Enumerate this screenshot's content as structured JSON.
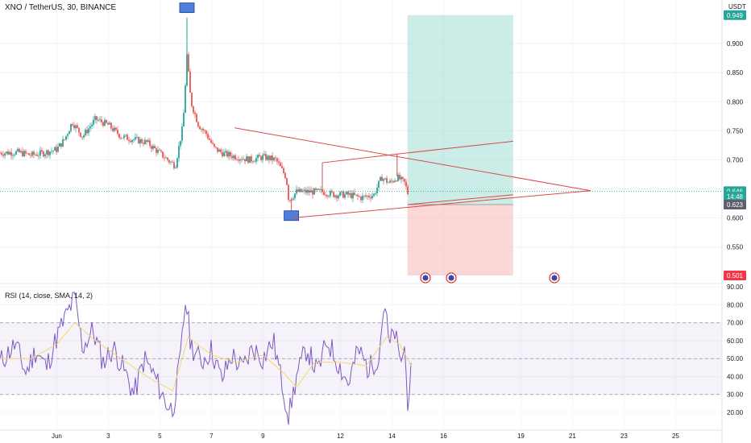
{
  "header": {
    "symbol": "XNO / TetherUS, 30, BINANCE",
    "unit": "USDT"
  },
  "rsi": {
    "label": "RSI (14, close, SMA, 14, 2)"
  },
  "colors": {
    "candle_up": "#26a69a",
    "candle_down": "#ef5350",
    "pattern_line": "#d94a4a",
    "profit_zone": "#8fd6c9",
    "loss_zone": "#f7b7b7",
    "rsi_line": "#7e57c2",
    "rsi_ma": "#f5d76e",
    "marker_box": "#4f7fdc",
    "price_tag_green": "#26a69a",
    "price_tag_red": "#f23645"
  },
  "chart_data": {
    "type": "candlestick",
    "price_axis": {
      "ticks": [
        "0.900",
        "0.850",
        "0.800",
        "0.750",
        "0.700",
        "0.650",
        "0.600",
        "0.550"
      ],
      "tick_values": [
        0.9,
        0.85,
        0.8,
        0.75,
        0.7,
        0.65,
        0.6,
        0.55
      ],
      "range": [
        0.49,
        0.975
      ]
    },
    "price_tags": [
      {
        "label": "0.949",
        "value": 0.949,
        "kind": "green"
      },
      {
        "label": "0.646",
        "value": 0.646,
        "kind": "green"
      },
      {
        "label": "14:48",
        "value": 0.637,
        "kind": "green"
      },
      {
        "label": "0.623",
        "value": 0.623,
        "kind": "gray"
      },
      {
        "label": "0.501",
        "value": 0.501,
        "kind": "red"
      }
    ],
    "time_axis": {
      "labels": [
        "Jun",
        "3",
        "5",
        "7",
        "9",
        "12",
        "14",
        "16",
        "19",
        "21",
        "23",
        "25"
      ],
      "days": [
        1,
        3,
        5,
        7,
        9,
        12,
        14,
        16,
        19,
        21,
        23,
        25
      ],
      "range_days": [
        -1.2,
        26.8
      ]
    },
    "rsi_axis": {
      "ticks": [
        "90.00",
        "80.00",
        "70.00",
        "60.00",
        "50.00",
        "40.00",
        "30.00",
        "20.00"
      ],
      "tick_values": [
        90,
        80,
        70,
        60,
        50,
        40,
        30,
        20
      ],
      "range": [
        11,
        91
      ],
      "band": [
        30,
        70
      ],
      "mid": 50
    },
    "close_series": [
      {
        "day": -1.2,
        "v": 0.712
      },
      {
        "day": -0.5,
        "v": 0.713
      },
      {
        "day": 0.0,
        "v": 0.708
      },
      {
        "day": 0.5,
        "v": 0.712
      },
      {
        "day": 1.0,
        "v": 0.718
      },
      {
        "day": 1.3,
        "v": 0.735
      },
      {
        "day": 1.6,
        "v": 0.765
      },
      {
        "day": 2.0,
        "v": 0.74
      },
      {
        "day": 2.5,
        "v": 0.77
      },
      {
        "day": 3.0,
        "v": 0.76
      },
      {
        "day": 3.5,
        "v": 0.74
      },
      {
        "day": 4.0,
        "v": 0.735
      },
      {
        "day": 4.5,
        "v": 0.73
      },
      {
        "day": 4.9,
        "v": 0.715
      },
      {
        "day": 5.3,
        "v": 0.7
      },
      {
        "day": 5.6,
        "v": 0.69
      },
      {
        "day": 5.9,
        "v": 0.76
      },
      {
        "day": 6.05,
        "v": 0.88
      },
      {
        "day": 6.2,
        "v": 0.8
      },
      {
        "day": 6.5,
        "v": 0.76
      },
      {
        "day": 6.8,
        "v": 0.745
      },
      {
        "day": 7.1,
        "v": 0.72
      },
      {
        "day": 7.5,
        "v": 0.71
      },
      {
        "day": 8.0,
        "v": 0.705
      },
      {
        "day": 8.5,
        "v": 0.7
      },
      {
        "day": 9.0,
        "v": 0.705
      },
      {
        "day": 9.5,
        "v": 0.7
      },
      {
        "day": 9.9,
        "v": 0.67
      },
      {
        "day": 10.0,
        "v": 0.63
      },
      {
        "day": 10.3,
        "v": 0.645
      },
      {
        "day": 10.8,
        "v": 0.645
      },
      {
        "day": 11.3,
        "v": 0.645
      },
      {
        "day": 11.8,
        "v": 0.64
      },
      {
        "day": 12.3,
        "v": 0.64
      },
      {
        "day": 12.8,
        "v": 0.635
      },
      {
        "day": 13.3,
        "v": 0.64
      },
      {
        "day": 13.6,
        "v": 0.67
      },
      {
        "day": 13.9,
        "v": 0.66
      },
      {
        "day": 14.2,
        "v": 0.67
      },
      {
        "day": 14.5,
        "v": 0.66
      },
      {
        "day": 14.65,
        "v": 0.637
      }
    ],
    "extremes": [
      {
        "day": 6.05,
        "v": 0.945,
        "kind": "high"
      },
      {
        "day": 10.1,
        "v": 0.604,
        "kind": "low"
      }
    ],
    "triangle": {
      "upper": [
        {
          "day": 7.9,
          "v": 0.755
        },
        {
          "day": 21.7,
          "v": 0.647
        }
      ],
      "lower": [
        {
          "day": 10.1,
          "v": 0.6
        },
        {
          "day": 21.7,
          "v": 0.647
        }
      ],
      "channel_upper": [
        {
          "day": 11.3,
          "v": 0.695
        },
        {
          "day": 14.2,
          "v": 0.71
        },
        {
          "day": 18.7,
          "v": 0.732
        }
      ],
      "channel_lower": [
        {
          "day": 14.6,
          "v": 0.623
        },
        {
          "day": 18.7,
          "v": 0.64
        }
      ],
      "verticals": [
        {
          "day": 11.3,
          "from": 0.695,
          "to": 0.645
        },
        {
          "day": 14.2,
          "from": 0.71,
          "to": 0.672
        }
      ]
    },
    "position": {
      "start_day": 14.6,
      "end_day": 18.7,
      "entry": 0.623,
      "target": 0.949,
      "stop": 0.501
    },
    "event_flags": [
      {
        "day": 15.3
      },
      {
        "day": 16.3
      },
      {
        "day": 20.3
      }
    ],
    "rsi_series": [
      {
        "day": -1.2,
        "v": 48
      },
      {
        "day": -0.6,
        "v": 58
      },
      {
        "day": -0.2,
        "v": 42
      },
      {
        "day": 0.2,
        "v": 55
      },
      {
        "day": 0.6,
        "v": 45
      },
      {
        "day": 1.0,
        "v": 62
      },
      {
        "day": 1.4,
        "v": 75
      },
      {
        "day": 1.7,
        "v": 84
      },
      {
        "day": 2.0,
        "v": 56
      },
      {
        "day": 2.4,
        "v": 66
      },
      {
        "day": 2.8,
        "v": 48
      },
      {
        "day": 3.2,
        "v": 56
      },
      {
        "day": 3.6,
        "v": 44
      },
      {
        "day": 4.0,
        "v": 30
      },
      {
        "day": 4.4,
        "v": 50
      },
      {
        "day": 4.8,
        "v": 40
      },
      {
        "day": 5.2,
        "v": 26
      },
      {
        "day": 5.5,
        "v": 21
      },
      {
        "day": 5.8,
        "v": 50
      },
      {
        "day": 6.0,
        "v": 84
      },
      {
        "day": 6.2,
        "v": 58
      },
      {
        "day": 6.6,
        "v": 48
      },
      {
        "day": 7.0,
        "v": 55
      },
      {
        "day": 7.4,
        "v": 38
      },
      {
        "day": 7.8,
        "v": 52
      },
      {
        "day": 8.2,
        "v": 44
      },
      {
        "day": 8.6,
        "v": 56
      },
      {
        "day": 9.0,
        "v": 50
      },
      {
        "day": 9.4,
        "v": 60
      },
      {
        "day": 9.8,
        "v": 32
      },
      {
        "day": 10.0,
        "v": 18
      },
      {
        "day": 10.3,
        "v": 40
      },
      {
        "day": 10.7,
        "v": 56
      },
      {
        "day": 11.1,
        "v": 42
      },
      {
        "day": 11.5,
        "v": 60
      },
      {
        "day": 11.9,
        "v": 48
      },
      {
        "day": 12.3,
        "v": 36
      },
      {
        "day": 12.7,
        "v": 55
      },
      {
        "day": 13.1,
        "v": 44
      },
      {
        "day": 13.5,
        "v": 52
      },
      {
        "day": 13.7,
        "v": 83
      },
      {
        "day": 13.9,
        "v": 56
      },
      {
        "day": 14.1,
        "v": 66
      },
      {
        "day": 14.3,
        "v": 48
      },
      {
        "day": 14.5,
        "v": 56
      },
      {
        "day": 14.6,
        "v": 26
      },
      {
        "day": 14.75,
        "v": 42
      }
    ],
    "rsi_ma_series": [
      {
        "day": -1.2,
        "v": 50
      },
      {
        "day": 0.0,
        "v": 50
      },
      {
        "day": 1.0,
        "v": 58
      },
      {
        "day": 1.7,
        "v": 70
      },
      {
        "day": 2.5,
        "v": 60
      },
      {
        "day": 3.5,
        "v": 50
      },
      {
        "day": 4.5,
        "v": 40
      },
      {
        "day": 5.5,
        "v": 32
      },
      {
        "day": 6.1,
        "v": 62
      },
      {
        "day": 7.0,
        "v": 52
      },
      {
        "day": 8.0,
        "v": 48
      },
      {
        "day": 9.0,
        "v": 52
      },
      {
        "day": 9.8,
        "v": 42
      },
      {
        "day": 10.3,
        "v": 34
      },
      {
        "day": 11.0,
        "v": 48
      },
      {
        "day": 12.0,
        "v": 48
      },
      {
        "day": 13.0,
        "v": 46
      },
      {
        "day": 13.8,
        "v": 62
      },
      {
        "day": 14.3,
        "v": 58
      },
      {
        "day": 14.75,
        "v": 46
      }
    ]
  }
}
